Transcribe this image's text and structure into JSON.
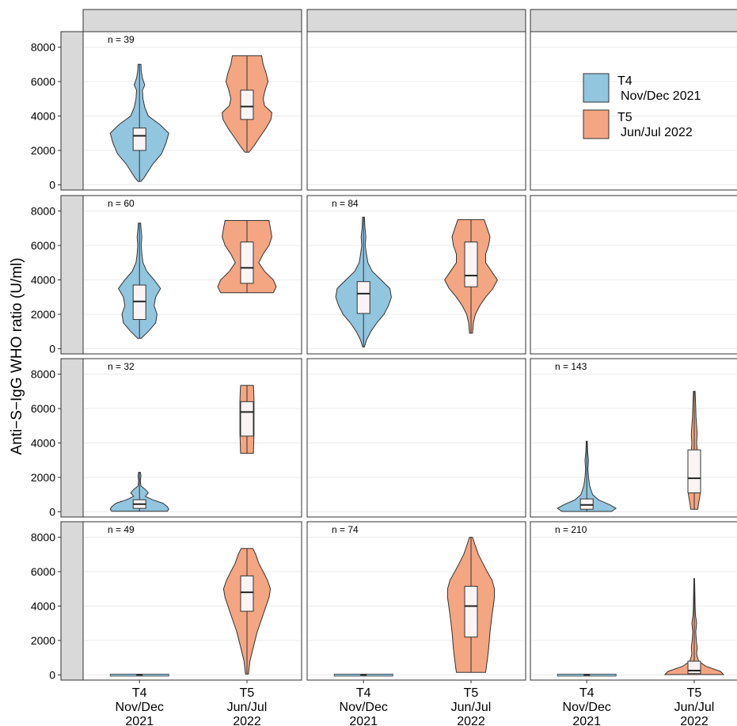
{
  "chart_data": {
    "type": "violin",
    "ylabel": "Anti−S−IgG WHO ratio (U/ml)",
    "ylim": [
      -300,
      8900
    ],
    "y_ticks": [
      0,
      2000,
      4000,
      6000,
      8000
    ],
    "x_categories": [
      [
        "T4",
        "Nov/Dec",
        "2021"
      ],
      [
        "T5",
        "Jun/Jul",
        "2022"
      ]
    ],
    "grid": "light horizontal lines",
    "legend_position": "top-right panel",
    "legend": [
      {
        "key": "T4",
        "label_line1": "T4",
        "label_line2": "Nov/Dec 2021",
        "color": "#92c5de"
      },
      {
        "key": "T5",
        "label_line1": "T5",
        "label_line2": "Jun/Jul 2022",
        "color": "#f4a582"
      }
    ],
    "colors": {
      "T4": "#92c5de",
      "T5": "#f4a582",
      "strip": "#d9d9d9",
      "outline": "#333333",
      "box_fill": "#fbf4f4",
      "grid": "#ebebeb"
    },
    "panels": [
      {
        "row": 0,
        "col": 0,
        "n": "n = 39",
        "violins": [
          {
            "group": "T4",
            "min": 200,
            "max": 7000,
            "q1": 2000,
            "median": 2850,
            "q3": 3300,
            "profile": [
              [
                200,
                0.05
              ],
              [
                400,
                0.15
              ],
              [
                800,
                0.3
              ],
              [
                1200,
                0.45
              ],
              [
                1800,
                0.75
              ],
              [
                2400,
                0.9
              ],
              [
                3000,
                1.0
              ],
              [
                3500,
                0.7
              ],
              [
                4000,
                0.3
              ],
              [
                4500,
                0.18
              ],
              [
                5000,
                0.12
              ],
              [
                5500,
                0.1
              ],
              [
                5800,
                0.18
              ],
              [
                6200,
                0.1
              ],
              [
                6600,
                0.06
              ],
              [
                7000,
                0.05
              ]
            ]
          },
          {
            "group": "T5",
            "min": 1900,
            "max": 7500,
            "q1": 3800,
            "median": 4550,
            "q3": 5500,
            "profile": [
              [
                1900,
                0.07
              ],
              [
                2300,
                0.25
              ],
              [
                2800,
                0.45
              ],
              [
                3300,
                0.65
              ],
              [
                3800,
                0.82
              ],
              [
                4200,
                0.85
              ],
              [
                4600,
                0.6
              ],
              [
                5000,
                0.55
              ],
              [
                5500,
                0.62
              ],
              [
                6000,
                0.72
              ],
              [
                6500,
                0.65
              ],
              [
                7000,
                0.55
              ],
              [
                7500,
                0.5
              ]
            ]
          }
        ]
      },
      {
        "row": 0,
        "col": 1,
        "n": "",
        "violins": []
      },
      {
        "row": 0,
        "col": 2,
        "n": "",
        "violins": []
      },
      {
        "row": 1,
        "col": 0,
        "n": "n = 60",
        "violins": [
          {
            "group": "T4",
            "min": 600,
            "max": 7300,
            "q1": 1700,
            "median": 2750,
            "q3": 3700,
            "profile": [
              [
                600,
                0.06
              ],
              [
                1000,
                0.3
              ],
              [
                1500,
                0.55
              ],
              [
                2000,
                0.6
              ],
              [
                2500,
                0.5
              ],
              [
                3000,
                0.55
              ],
              [
                3500,
                0.72
              ],
              [
                4000,
                0.5
              ],
              [
                4500,
                0.25
              ],
              [
                5000,
                0.12
              ],
              [
                5500,
                0.08
              ],
              [
                6000,
                0.06
              ],
              [
                6500,
                0.08
              ],
              [
                7000,
                0.05
              ],
              [
                7300,
                0.04
              ]
            ]
          },
          {
            "group": "T5",
            "min": 3250,
            "max": 7450,
            "q1": 3800,
            "median": 4700,
            "q3": 6200,
            "profile": [
              [
                3250,
                0.9
              ],
              [
                3600,
                1.0
              ],
              [
                4000,
                0.9
              ],
              [
                4500,
                0.6
              ],
              [
                5000,
                0.4
              ],
              [
                5500,
                0.55
              ],
              [
                6000,
                0.75
              ],
              [
                6500,
                0.85
              ],
              [
                7000,
                0.8
              ],
              [
                7450,
                0.75
              ]
            ]
          }
        ]
      },
      {
        "row": 1,
        "col": 1,
        "n": "n = 84",
        "violins": [
          {
            "group": "T4",
            "min": 100,
            "max": 7650,
            "q1": 2050,
            "median": 3200,
            "q3": 3900,
            "profile": [
              [
                100,
                0.03
              ],
              [
                500,
                0.1
              ],
              [
                1000,
                0.25
              ],
              [
                1500,
                0.45
              ],
              [
                2000,
                0.7
              ],
              [
                2500,
                0.85
              ],
              [
                3000,
                0.95
              ],
              [
                3500,
                0.9
              ],
              [
                4000,
                0.6
              ],
              [
                4500,
                0.3
              ],
              [
                5000,
                0.15
              ],
              [
                5500,
                0.1
              ],
              [
                6000,
                0.06
              ],
              [
                6500,
                0.08
              ],
              [
                7000,
                0.05
              ],
              [
                7650,
                0.03
              ]
            ]
          },
          {
            "group": "T5",
            "min": 900,
            "max": 7500,
            "q1": 3600,
            "median": 4250,
            "q3": 6200,
            "profile": [
              [
                900,
                0.05
              ],
              [
                1500,
                0.08
              ],
              [
                2000,
                0.15
              ],
              [
                2500,
                0.3
              ],
              [
                3000,
                0.5
              ],
              [
                3500,
                0.75
              ],
              [
                4000,
                0.9
              ],
              [
                4500,
                0.7
              ],
              [
                5000,
                0.5
              ],
              [
                5500,
                0.5
              ],
              [
                6000,
                0.6
              ],
              [
                6500,
                0.65
              ],
              [
                7000,
                0.55
              ],
              [
                7500,
                0.45
              ]
            ]
          }
        ]
      },
      {
        "row": 1,
        "col": 2,
        "n": "",
        "violins": []
      },
      {
        "row": 2,
        "col": 0,
        "n": "n = 32",
        "violins": [
          {
            "group": "T4",
            "min": 30,
            "max": 2300,
            "q1": 200,
            "median": 450,
            "q3": 700,
            "profile": [
              [
                30,
                0.95
              ],
              [
                150,
                1.0
              ],
              [
                300,
                0.95
              ],
              [
                500,
                0.8
              ],
              [
                700,
                0.45
              ],
              [
                900,
                0.2
              ],
              [
                1100,
                0.3
              ],
              [
                1300,
                0.2
              ],
              [
                1500,
                0.05
              ],
              [
                1800,
                0.03
              ],
              [
                2100,
                0.05
              ],
              [
                2300,
                0.03
              ]
            ]
          },
          {
            "group": "T5",
            "min": 3400,
            "max": 7350,
            "q1": 4400,
            "median": 5800,
            "q3": 6400,
            "profile": [
              [
                3400,
                0.22
              ],
              [
                4000,
                0.23
              ],
              [
                4500,
                0.24
              ],
              [
                5000,
                0.24
              ],
              [
                5500,
                0.24
              ],
              [
                6000,
                0.24
              ],
              [
                6500,
                0.24
              ],
              [
                7000,
                0.23
              ],
              [
                7350,
                0.22
              ]
            ]
          }
        ]
      },
      {
        "row": 2,
        "col": 1,
        "n": "",
        "violins": []
      },
      {
        "row": 2,
        "col": 2,
        "n": "n = 143",
        "violins": [
          {
            "group": "T4",
            "min": 20,
            "max": 4100,
            "q1": 150,
            "median": 400,
            "q3": 750,
            "profile": [
              [
                20,
                0.85
              ],
              [
                200,
                1.0
              ],
              [
                400,
                0.8
              ],
              [
                700,
                0.4
              ],
              [
                1000,
                0.2
              ],
              [
                1500,
                0.1
              ],
              [
                2000,
                0.06
              ],
              [
                2500,
                0.04
              ],
              [
                3000,
                0.06
              ],
              [
                3500,
                0.03
              ],
              [
                4100,
                0.02
              ]
            ]
          },
          {
            "group": "T5",
            "min": 150,
            "max": 7000,
            "q1": 1100,
            "median": 1950,
            "q3": 3600,
            "profile": [
              [
                150,
                0.12
              ],
              [
                600,
                0.16
              ],
              [
                1000,
                0.2
              ],
              [
                1500,
                0.18
              ],
              [
                2000,
                0.15
              ],
              [
                2500,
                0.13
              ],
              [
                3000,
                0.12
              ],
              [
                3500,
                0.1
              ],
              [
                4000,
                0.08
              ],
              [
                4500,
                0.1
              ],
              [
                5000,
                0.08
              ],
              [
                5500,
                0.06
              ],
              [
                6000,
                0.05
              ],
              [
                6500,
                0.04
              ],
              [
                7000,
                0.03
              ]
            ]
          }
        ]
      },
      {
        "row": 3,
        "col": 0,
        "n": "n = 49",
        "violins": [
          {
            "group": "T4",
            "min": 0,
            "max": 40,
            "q1": 5,
            "median": 15,
            "q3": 25,
            "profile": [
              [
                -40,
                0
              ],
              [
                0,
                1.0
              ],
              [
                40,
                0
              ]
            ]
          },
          {
            "group": "T5",
            "min": 50,
            "max": 7350,
            "q1": 3700,
            "median": 4800,
            "q3": 5750,
            "profile": [
              [
                50,
                0.05
              ],
              [
                800,
                0.1
              ],
              [
                1500,
                0.2
              ],
              [
                2500,
                0.35
              ],
              [
                3500,
                0.55
              ],
              [
                4500,
                0.75
              ],
              [
                5000,
                0.8
              ],
              [
                5500,
                0.7
              ],
              [
                6000,
                0.55
              ],
              [
                6500,
                0.4
              ],
              [
                7000,
                0.3
              ],
              [
                7350,
                0.2
              ]
            ]
          }
        ]
      },
      {
        "row": 3,
        "col": 1,
        "n": "n = 74",
        "violins": [
          {
            "group": "T4",
            "min": 0,
            "max": 40,
            "q1": 5,
            "median": 15,
            "q3": 25,
            "profile": [
              [
                -40,
                0
              ],
              [
                0,
                1.0
              ],
              [
                40,
                0
              ]
            ]
          },
          {
            "group": "T5",
            "min": 150,
            "max": 8000,
            "q1": 2200,
            "median": 4000,
            "q3": 5150,
            "profile": [
              [
                150,
                0.5
              ],
              [
                800,
                0.55
              ],
              [
                1500,
                0.6
              ],
              [
                2500,
                0.65
              ],
              [
                3500,
                0.72
              ],
              [
                4500,
                0.8
              ],
              [
                5000,
                0.8
              ],
              [
                5500,
                0.72
              ],
              [
                6000,
                0.55
              ],
              [
                6500,
                0.4
              ],
              [
                7000,
                0.25
              ],
              [
                7500,
                0.15
              ],
              [
                8000,
                0.05
              ]
            ]
          }
        ]
      },
      {
        "row": 3,
        "col": 2,
        "n": "n = 210",
        "violins": [
          {
            "group": "T4",
            "min": 0,
            "max": 40,
            "q1": 5,
            "median": 15,
            "q3": 25,
            "profile": [
              [
                -40,
                0
              ],
              [
                0,
                1.0
              ],
              [
                40,
                0
              ]
            ]
          },
          {
            "group": "T5",
            "min": 20,
            "max": 5600,
            "q1": 80,
            "median": 250,
            "q3": 800,
            "profile": [
              [
                20,
                1.0
              ],
              [
                200,
                0.9
              ],
              [
                500,
                0.4
              ],
              [
                800,
                0.15
              ],
              [
                1200,
                0.08
              ],
              [
                1600,
                0.1
              ],
              [
                2000,
                0.07
              ],
              [
                2500,
                0.05
              ],
              [
                3000,
                0.08
              ],
              [
                3500,
                0.04
              ],
              [
                4000,
                0.03
              ],
              [
                5000,
                0.02
              ],
              [
                5600,
                0.01
              ]
            ]
          }
        ]
      }
    ]
  }
}
